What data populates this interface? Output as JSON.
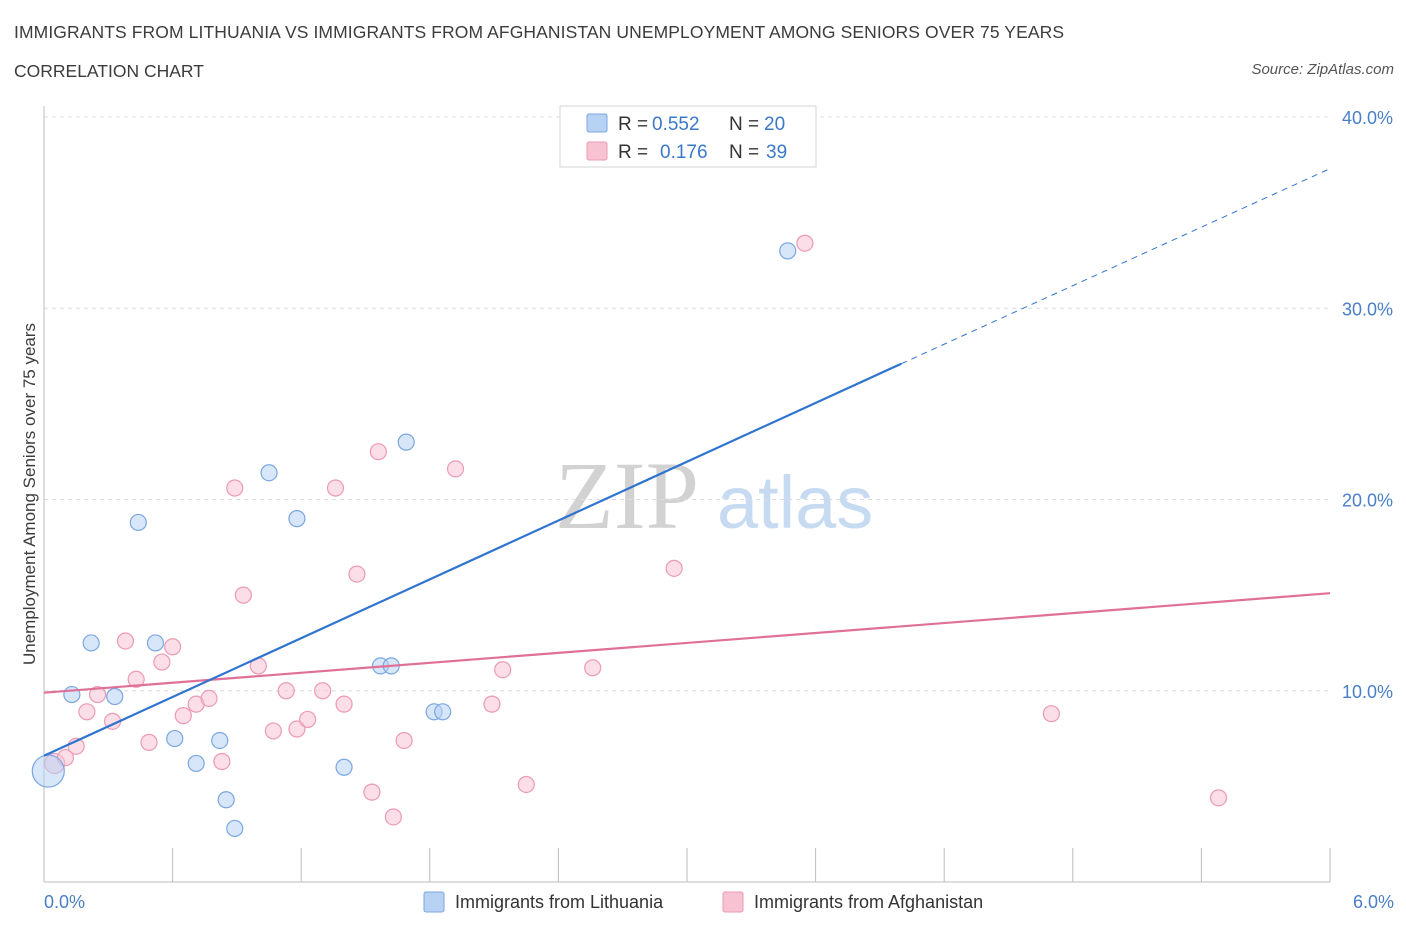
{
  "header": {
    "title": "IMMIGRANTS FROM LITHUANIA VS IMMIGRANTS FROM AFGHANISTAN UNEMPLOYMENT AMONG SENIORS OVER 75 YEARS",
    "subtitle": "CORRELATION CHART",
    "source": "Source: ZipAtlas.com"
  },
  "watermark": {
    "zip": "ZIP",
    "atlas": "atlas"
  },
  "colors": {
    "lithuania_fill": "#b8d2f4",
    "lithuania_stroke": "#7aa7e0",
    "lithuania_line": "#2f74d0",
    "afghanistan_fill": "#f7c3d3",
    "afghanistan_stroke": "#ec9ab4",
    "afghanistan_line": "#e07097",
    "tick_label": "#4a7fc8",
    "grid": "#d9dde3"
  },
  "legend_top": {
    "rows": [
      {
        "r_label": "R =",
        "r_value": "0.552",
        "n_label": "N =",
        "n_value": "20"
      },
      {
        "r_label": "R =",
        "r_value": "0.176",
        "n_label": "N =",
        "n_value": "39"
      }
    ]
  },
  "legend_bottom": [
    "Immigrants from Lithuania",
    "Immigrants from Afghanistan"
  ],
  "chart_data": {
    "type": "scatter",
    "title": "IMMIGRANTS FROM LITHUANIA VS IMMIGRANTS FROM AFGHANISTAN UNEMPLOYMENT AMONG SENIORS OVER 75 YEARS",
    "ylabel": "Unemployment Among Seniors over 75 years",
    "xlabel": "",
    "xlim": [
      0,
      6
    ],
    "ylim": [
      0,
      40
    ],
    "x_tick_labels": [
      "0.0%",
      "6.0%"
    ],
    "y_ticks": [
      10,
      20,
      30,
      40
    ],
    "y_tick_labels": [
      "10.0%",
      "20.0%",
      "30.0%",
      "40.0%"
    ],
    "grid": true,
    "legend_position": "top-center",
    "series": [
      {
        "name": "Immigrants from Lithuania",
        "R": 0.552,
        "N": 20,
        "points": [
          [
            0.02,
            5.8,
            16
          ],
          [
            0.13,
            9.8,
            8
          ],
          [
            0.22,
            12.5,
            8
          ],
          [
            0.33,
            9.7,
            8
          ],
          [
            0.44,
            18.8,
            8
          ],
          [
            0.52,
            12.5,
            8
          ],
          [
            0.61,
            7.5,
            8
          ],
          [
            0.71,
            6.2,
            8
          ],
          [
            0.82,
            7.4,
            8
          ],
          [
            0.85,
            4.3,
            8
          ],
          [
            0.89,
            2.8,
            8
          ],
          [
            1.05,
            21.4,
            8
          ],
          [
            1.18,
            19.0,
            8
          ],
          [
            1.4,
            6.0,
            8
          ],
          [
            1.57,
            11.3,
            8
          ],
          [
            1.62,
            11.3,
            8
          ],
          [
            1.69,
            23.0,
            8
          ],
          [
            1.82,
            8.9,
            8
          ],
          [
            1.86,
            8.9,
            8
          ],
          [
            3.47,
            33.0,
            8
          ]
        ],
        "trend": {
          "x": [
            0.0,
            4.0
          ],
          "y": [
            6.6,
            27.1
          ]
        },
        "trend_extension": {
          "x": [
            4.0,
            6.0
          ],
          "y": [
            27.1,
            37.3
          ]
        }
      },
      {
        "name": "Immigrants from Afghanistan",
        "R": 0.176,
        "N": 39,
        "points": [
          [
            0.05,
            6.2,
            10
          ],
          [
            0.1,
            6.5,
            8
          ],
          [
            0.15,
            7.1,
            8
          ],
          [
            0.2,
            8.9,
            8
          ],
          [
            0.25,
            9.8,
            8
          ],
          [
            0.32,
            8.4,
            8
          ],
          [
            0.38,
            12.6,
            8
          ],
          [
            0.43,
            10.6,
            8
          ],
          [
            0.49,
            7.3,
            8
          ],
          [
            0.55,
            11.5,
            8
          ],
          [
            0.6,
            12.3,
            8
          ],
          [
            0.65,
            8.7,
            8
          ],
          [
            0.71,
            9.3,
            8
          ],
          [
            0.77,
            9.6,
            8
          ],
          [
            0.83,
            6.3,
            8
          ],
          [
            0.89,
            20.6,
            8
          ],
          [
            0.93,
            15.0,
            8
          ],
          [
            1.0,
            11.3,
            8
          ],
          [
            1.07,
            7.9,
            8
          ],
          [
            1.13,
            10.0,
            8
          ],
          [
            1.18,
            8.0,
            8
          ],
          [
            1.23,
            8.5,
            8
          ],
          [
            1.3,
            10.0,
            8
          ],
          [
            1.36,
            20.6,
            8
          ],
          [
            1.4,
            9.3,
            8
          ],
          [
            1.46,
            16.1,
            8
          ],
          [
            1.53,
            4.7,
            8
          ],
          [
            1.56,
            22.5,
            8
          ],
          [
            1.63,
            3.4,
            8
          ],
          [
            1.68,
            7.4,
            8
          ],
          [
            1.92,
            21.6,
            8
          ],
          [
            2.09,
            9.3,
            8
          ],
          [
            2.14,
            11.1,
            8
          ],
          [
            2.25,
            5.1,
            8
          ],
          [
            2.56,
            11.2,
            8
          ],
          [
            2.94,
            16.4,
            8
          ],
          [
            3.55,
            33.4,
            8
          ],
          [
            4.7,
            8.8,
            8
          ],
          [
            5.48,
            4.4,
            8
          ]
        ],
        "trend": {
          "x": [
            0.0,
            6.0
          ],
          "y": [
            9.9,
            15.1
          ]
        }
      }
    ]
  }
}
